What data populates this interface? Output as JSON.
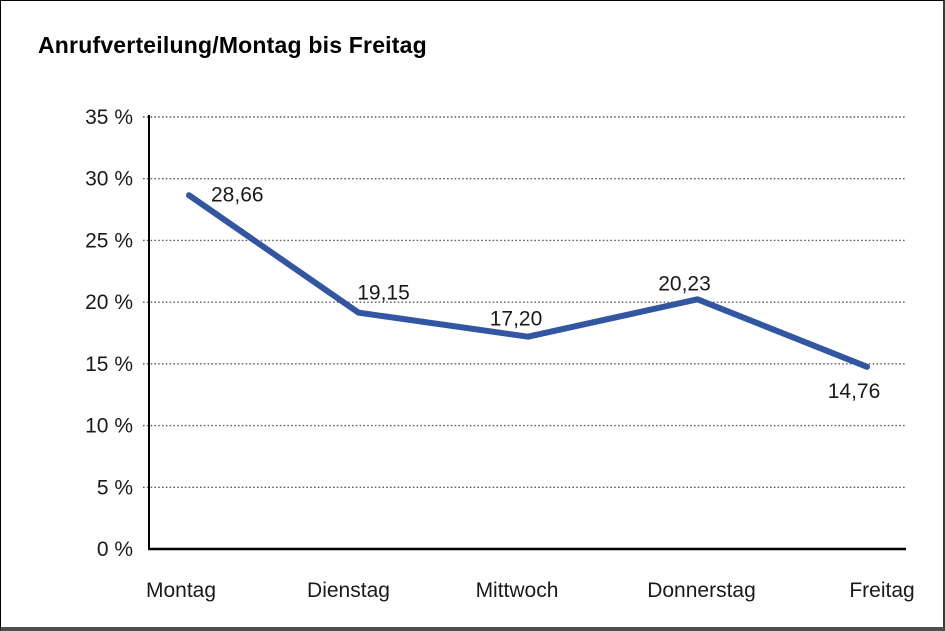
{
  "chart_data": {
    "type": "line",
    "title": "Anrufverteilung/Montag bis Freitag",
    "categories": [
      "Montag",
      "Dienstag",
      "Mittwoch",
      "Donnerstag",
      "Freitag"
    ],
    "values": [
      28.66,
      19.15,
      17.2,
      20.23,
      14.76
    ],
    "point_labels": [
      "28,66",
      "19,15",
      "17,20",
      "20,23",
      "14,76"
    ],
    "ylim": [
      0,
      35
    ],
    "ytick_step": 5,
    "ytick_labels": [
      "0 %",
      "5 %",
      "10 %",
      "15 %",
      "20 %",
      "25 %",
      "30 %",
      "35 %"
    ],
    "grid": "horizontal-dotted",
    "legend": "none",
    "colors": {
      "line": "#3356A3",
      "axis": "#000000",
      "grid": "#5f5f5f",
      "text": "#1a1a1a",
      "title": "#000000",
      "background": "#ffffff"
    }
  }
}
